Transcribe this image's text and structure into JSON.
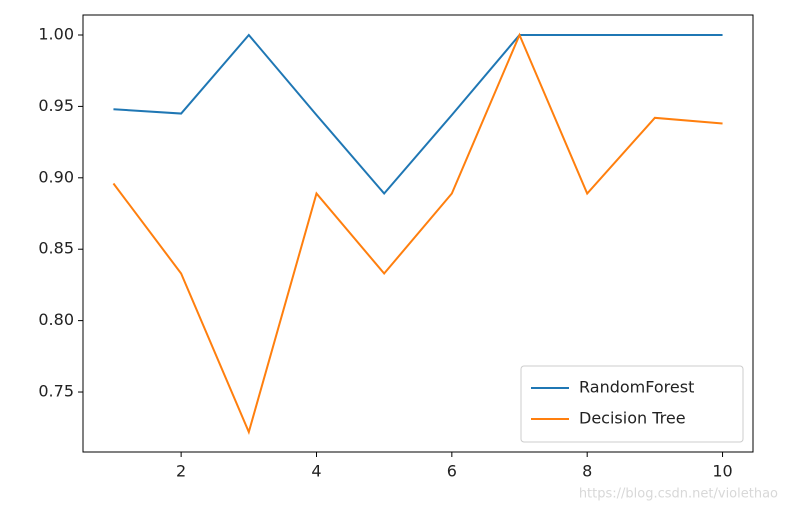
{
  "chart_data": {
    "type": "line",
    "x": [
      1,
      2,
      3,
      4,
      5,
      6,
      7,
      8,
      9,
      10
    ],
    "series": [
      {
        "name": "RandomForest",
        "color": "#1f77b4",
        "values": [
          0.948,
          0.945,
          1.0,
          0.944,
          0.889,
          0.944,
          1.0,
          1.0,
          1.0,
          1.0
        ]
      },
      {
        "name": "Decision Tree",
        "color": "#ff7f0e",
        "values": [
          0.896,
          0.833,
          0.722,
          0.889,
          0.833,
          0.889,
          1.0,
          0.889,
          0.942,
          0.938
        ]
      }
    ],
    "xlim": [
      0.55,
      10.45
    ],
    "xticks": [
      2,
      4,
      6,
      8,
      10
    ],
    "ylim": [
      0.708,
      1.014
    ],
    "yticks": [
      {
        "value": 0.75,
        "label": "0.75"
      },
      {
        "value": 0.8,
        "label": "0.80"
      },
      {
        "value": 0.85,
        "label": "0.85"
      },
      {
        "value": 0.9,
        "label": "0.90"
      },
      {
        "value": 0.95,
        "label": "0.95"
      },
      {
        "value": 1.0,
        "label": "1.00"
      }
    ],
    "legend": "lower right",
    "watermark": "https://blog.csdn.net/violethao"
  }
}
